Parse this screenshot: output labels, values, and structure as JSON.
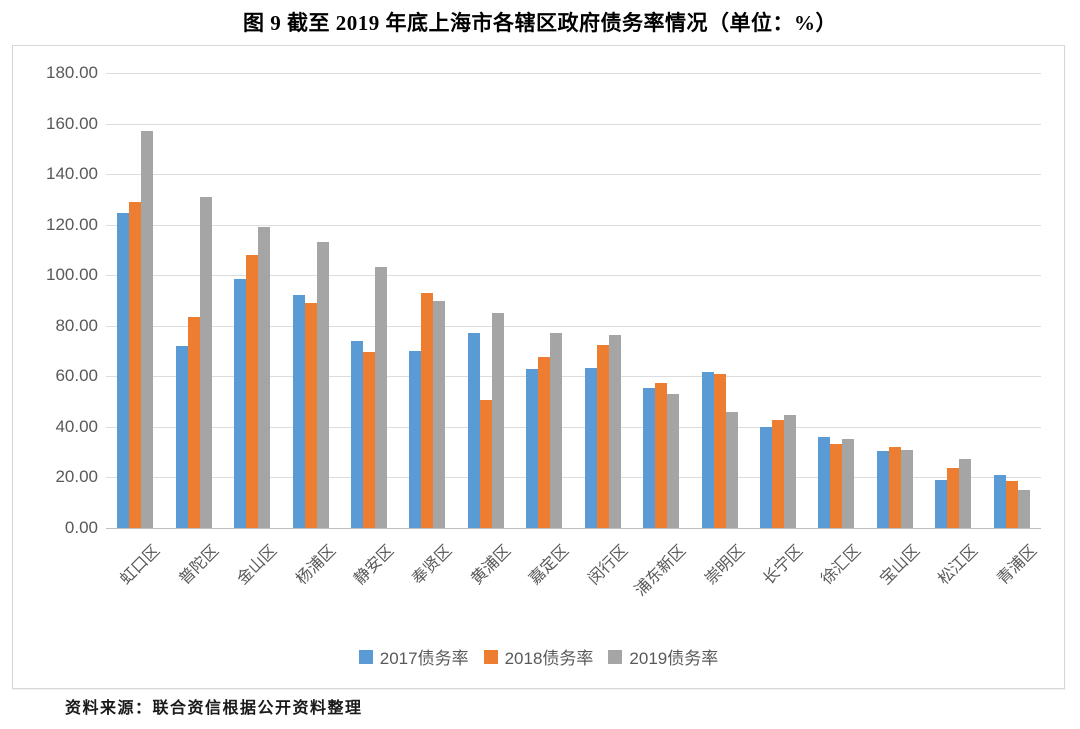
{
  "figure_title": "图 9  截至 2019 年底上海市各辖区政府债务率情况（单位：%）",
  "source_note": "资料来源：联合资信根据公开资料整理",
  "colors": {
    "series_2017": "#5B9BD5",
    "series_2018": "#ED7D31",
    "series_2019": "#A5A5A5",
    "gridline": "#DCDCDC",
    "axis_line": "#BFBFBF",
    "axis_text": "#595959",
    "title_text": "#000000"
  },
  "chart_data": {
    "type": "bar",
    "title": "图 9  截至 2019 年底上海市各辖区政府债务率情况（单位：%）",
    "xlabel": "",
    "ylabel": "",
    "ylim": [
      0,
      180
    ],
    "ytick_step": 20,
    "ytick_decimals": 2,
    "grid": "horizontal",
    "legend_position": "bottom",
    "categories": [
      "虹口区",
      "普陀区",
      "金山区",
      "杨浦区",
      "静安区",
      "奉贤区",
      "黄浦区",
      "嘉定区",
      "闵行区",
      "浦东新区",
      "崇明区",
      "长宁区",
      "徐汇区",
      "宝山区",
      "松江区",
      "青浦区"
    ],
    "series": [
      {
        "name": "2017债务率",
        "color": "#5B9BD5",
        "values": [
          124.5,
          72.2,
          98.7,
          92.3,
          74.0,
          70.0,
          77.0,
          63.0,
          63.4,
          55.4,
          61.8,
          40.0,
          36.1,
          30.4,
          19.1,
          21.0
        ]
      },
      {
        "name": "2018债务率",
        "color": "#ED7D31",
        "values": [
          128.8,
          83.5,
          108.2,
          89.0,
          69.7,
          92.8,
          50.6,
          67.7,
          72.5,
          57.4,
          61.1,
          42.8,
          33.4,
          32.2,
          23.7,
          18.5
        ]
      },
      {
        "name": "2019债务率",
        "color": "#A5A5A5",
        "values": [
          157.0,
          131.0,
          118.9,
          113.0,
          103.3,
          90.0,
          85.2,
          77.2,
          76.4,
          52.9,
          45.9,
          44.9,
          35.3,
          30.7,
          27.3,
          15.1
        ]
      }
    ]
  }
}
